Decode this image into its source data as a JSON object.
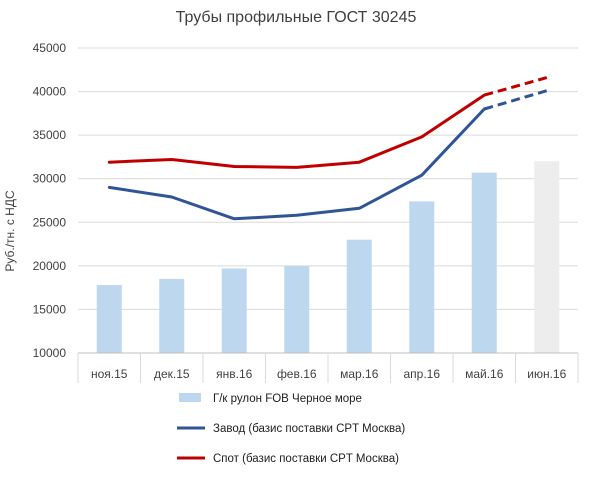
{
  "chart_data": {
    "type": "bar",
    "title": "Трубы профильные ГОСТ 30245",
    "xlabel": "",
    "ylabel": "Руб./тн. с НДС",
    "ylim": [
      10000,
      45000
    ],
    "yticks": [
      10000,
      15000,
      20000,
      25000,
      30000,
      35000,
      40000,
      45000
    ],
    "grid": true,
    "legend_position": "bottom",
    "categories": [
      "ноя.15",
      "дек.15",
      "янв.16",
      "фев.16",
      "мар.16",
      "апр.16",
      "май.16",
      "июн.16"
    ],
    "series": [
      {
        "name": "Г/к рулон FOB Черное море",
        "kind": "bar",
        "color": "#bdd7ee",
        "forecast_color": "#ededed",
        "values": [
          17800,
          18500,
          19700,
          20000,
          23000,
          27400,
          30700,
          32000
        ]
      },
      {
        "name": "Завод (базис поставки CPT Москва)",
        "kind": "line",
        "color": "#2f5597",
        "values": [
          29000,
          27900,
          25400,
          25800,
          26600,
          30400,
          38000,
          40100
        ],
        "dashed_from_index": 6
      },
      {
        "name": "Спот (базис поставки CPT Москва)",
        "kind": "line",
        "color": "#c00000",
        "values": [
          31900,
          32200,
          31400,
          31300,
          31900,
          34800,
          39600,
          41600
        ],
        "dashed_from_index": 6
      }
    ]
  }
}
